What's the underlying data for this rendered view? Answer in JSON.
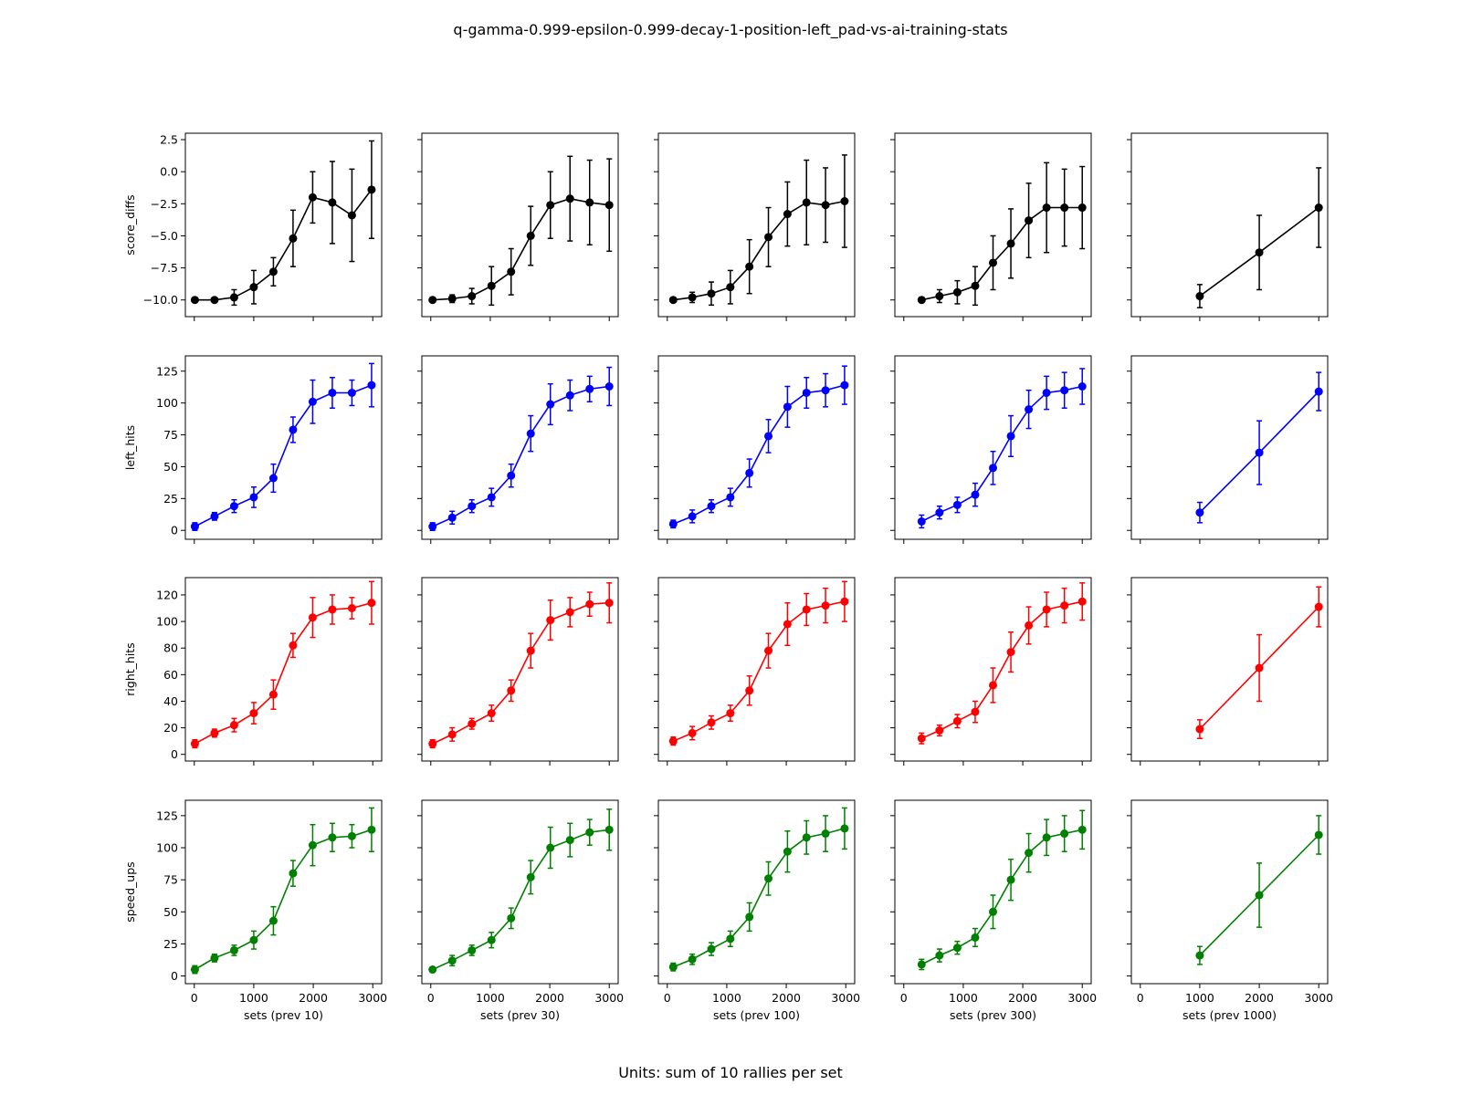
{
  "figure": {
    "title": "q-gamma-0.999-epsilon-0.999-decay-1-position-left_pad-vs-ai-training-stats",
    "footnote": "Units: sum of 10 rallies per set"
  },
  "chart_data": {
    "type": "line",
    "title": "q-gamma-0.999-epsilon-0.999-decay-1-position-left_pad-vs-ai-training-stats",
    "grid": false,
    "x_range": [
      -150,
      3150
    ],
    "x_ticks": [
      0,
      1000,
      2000,
      3000
    ],
    "columns": [
      {
        "xlabel": "sets (prev 10)",
        "x": [
          10,
          340,
          670,
          1000,
          1330,
          1660,
          1990,
          2320,
          2650,
          2980
        ]
      },
      {
        "xlabel": "sets (prev 30)",
        "x": [
          30,
          360,
          690,
          1020,
          1350,
          1680,
          2010,
          2340,
          2670,
          3000
        ]
      },
      {
        "xlabel": "sets (prev 100)",
        "x": [
          100,
          420,
          740,
          1060,
          1380,
          1700,
          2020,
          2340,
          2660,
          2980
        ]
      },
      {
        "xlabel": "sets (prev 300)",
        "x": [
          300,
          600,
          900,
          1200,
          1500,
          1800,
          2100,
          2400,
          2700,
          3000
        ]
      },
      {
        "xlabel": "sets (prev 1000)",
        "x": [
          1000,
          2000,
          3000
        ]
      }
    ],
    "rows": [
      {
        "ylabel": "score_diffs",
        "color": "#000000",
        "ylim": [
          -11.3,
          3.0
        ],
        "y_ticks": [
          -10.0,
          -7.5,
          -5.0,
          -2.5,
          0.0,
          2.5
        ],
        "y_tick_labels": [
          "−10.0",
          "−7.5",
          "−5.0",
          "−2.5",
          "0.0",
          "2.5"
        ],
        "panels": [
          {
            "y": [
              -10.0,
              -10.0,
              -9.8,
              -9.0,
              -7.8,
              -5.2,
              -2.0,
              -2.4,
              -3.4,
              -1.4
            ],
            "err": [
              0.1,
              0.1,
              0.6,
              1.3,
              1.1,
              2.2,
              2.0,
              3.2,
              3.6,
              3.8
            ]
          },
          {
            "y": [
              -10.0,
              -9.9,
              -9.7,
              -8.9,
              -7.8,
              -5.0,
              -2.6,
              -2.1,
              -2.4,
              -2.6
            ],
            "err": [
              0.1,
              0.3,
              0.6,
              1.5,
              1.8,
              2.3,
              2.6,
              3.3,
              3.3,
              3.6
            ]
          },
          {
            "y": [
              -10.0,
              -9.8,
              -9.5,
              -9.0,
              -7.4,
              -5.1,
              -3.3,
              -2.4,
              -2.6,
              -2.3
            ],
            "err": [
              0.1,
              0.4,
              0.9,
              1.3,
              2.1,
              2.3,
              2.5,
              3.3,
              2.9,
              3.6
            ]
          },
          {
            "y": [
              -10.0,
              -9.7,
              -9.4,
              -8.9,
              -7.1,
              -5.6,
              -3.8,
              -2.8,
              -2.8,
              -2.8
            ],
            "err": [
              0.2,
              0.5,
              0.9,
              1.5,
              2.1,
              2.7,
              2.9,
              3.5,
              3.0,
              3.2
            ]
          },
          {
            "y": [
              -9.7,
              -6.3,
              -2.8
            ],
            "err": [
              0.9,
              2.9,
              3.1
            ]
          }
        ]
      },
      {
        "ylabel": "left_hits",
        "color": "#0000ff",
        "ylim": [
          -7,
          137
        ],
        "y_ticks": [
          0,
          25,
          50,
          75,
          100,
          125
        ],
        "y_tick_labels": [
          "0",
          "25",
          "50",
          "75",
          "100",
          "125"
        ],
        "panels": [
          {
            "y": [
              3,
              11,
              19,
              26,
              41,
              79,
              101,
              108,
              108,
              114
            ],
            "err": [
              3,
              3,
              5,
              8,
              11,
              10,
              17,
              12,
              10,
              17
            ]
          },
          {
            "y": [
              3,
              10,
              19,
              26,
              43,
              76,
              99,
              106,
              111,
              113
            ],
            "err": [
              3,
              5,
              5,
              7,
              9,
              14,
              16,
              12,
              10,
              15
            ]
          },
          {
            "y": [
              5,
              11,
              19,
              26,
              45,
              74,
              97,
              108,
              110,
              114
            ],
            "err": [
              3,
              5,
              5,
              7,
              11,
              13,
              16,
              12,
              13,
              15
            ]
          },
          {
            "y": [
              7,
              14,
              20,
              28,
              49,
              74,
              95,
              108,
              110,
              113
            ],
            "err": [
              5,
              5,
              6,
              9,
              13,
              16,
              15,
              13,
              14,
              14
            ]
          },
          {
            "y": [
              14,
              61,
              109
            ],
            "err": [
              8,
              25,
              15
            ]
          }
        ]
      },
      {
        "ylabel": "right_hits",
        "color": "#ff0000",
        "ylim": [
          -5,
          133
        ],
        "y_ticks": [
          0,
          20,
          40,
          60,
          80,
          100,
          120
        ],
        "y_tick_labels": [
          "0",
          "20",
          "40",
          "60",
          "80",
          "100",
          "120"
        ],
        "panels": [
          {
            "y": [
              8,
              16,
              22,
              31,
              45,
              82,
              103,
              109,
              110,
              114
            ],
            "err": [
              3,
              3,
              5,
              8,
              11,
              9,
              15,
              11,
              8,
              16
            ]
          },
          {
            "y": [
              8,
              15,
              23,
              31,
              48,
              78,
              101,
              107,
              113,
              114
            ],
            "err": [
              3,
              5,
              4,
              6,
              8,
              13,
              15,
              11,
              9,
              15
            ]
          },
          {
            "y": [
              10,
              16,
              24,
              31,
              48,
              78,
              98,
              109,
              112,
              115
            ],
            "err": [
              3,
              5,
              5,
              6,
              11,
              13,
              16,
              12,
              13,
              15
            ]
          },
          {
            "y": [
              12,
              18,
              25,
              32,
              52,
              77,
              97,
              109,
              112,
              115
            ],
            "err": [
              4,
              4,
              5,
              8,
              13,
              15,
              14,
              13,
              13,
              14
            ]
          },
          {
            "y": [
              19,
              65,
              111
            ],
            "err": [
              7,
              25,
              15
            ]
          }
        ]
      },
      {
        "ylabel": "speed_ups",
        "color": "#008000",
        "ylim": [
          -6,
          137
        ],
        "y_ticks": [
          0,
          25,
          50,
          75,
          100,
          125
        ],
        "y_tick_labels": [
          "0",
          "25",
          "50",
          "75",
          "100",
          "125"
        ],
        "panels": [
          {
            "y": [
              5,
              14,
              20,
              28,
              43,
              80,
              102,
              108,
              109,
              114
            ],
            "err": [
              3,
              3,
              4,
              7,
              11,
              10,
              16,
              11,
              9,
              17
            ]
          },
          {
            "y": [
              5,
              12,
              20,
              28,
              45,
              77,
              100,
              106,
              112,
              114
            ],
            "err": [
              2,
              4,
              4,
              6,
              8,
              13,
              16,
              13,
              10,
              16
            ]
          },
          {
            "y": [
              7,
              13,
              21,
              29,
              46,
              76,
              97,
              108,
              111,
              115
            ],
            "err": [
              3,
              4,
              5,
              6,
              11,
              13,
              16,
              13,
              14,
              16
            ]
          },
          {
            "y": [
              9,
              16,
              22,
              30,
              50,
              75,
              96,
              108,
              111,
              114
            ],
            "err": [
              4,
              5,
              5,
              7,
              13,
              16,
              15,
              14,
              14,
              15
            ]
          },
          {
            "y": [
              16,
              63,
              110
            ],
            "err": [
              7,
              25,
              15
            ]
          }
        ]
      }
    ]
  }
}
